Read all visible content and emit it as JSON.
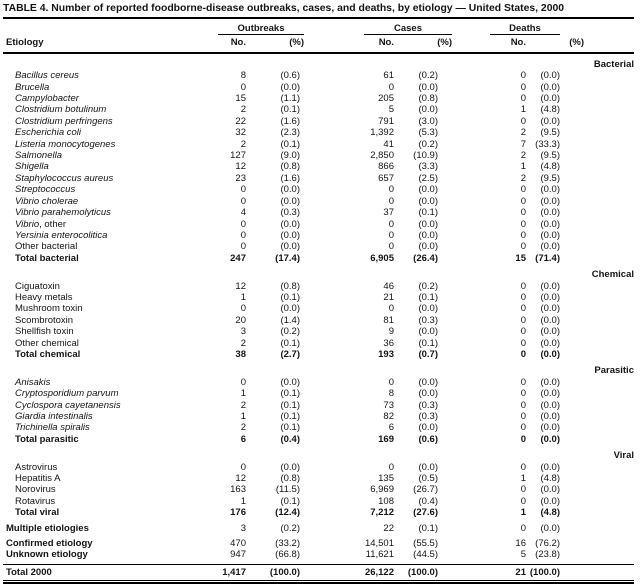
{
  "title": "TABLE 4. Number of reported foodborne-disease outbreaks, cases, and deaths, by etiology — United States, 2000",
  "colors": {
    "text": "#141414",
    "rule": "#000000",
    "background": "#ffffff"
  },
  "columns": {
    "etiology": "Etiology",
    "groups": [
      {
        "label": "Outbreaks",
        "no": "No.",
        "pct": "(%)"
      },
      {
        "label": "Cases",
        "no": "No.",
        "pct": "(%)"
      },
      {
        "label": "Deaths",
        "no": "No.",
        "pct": "(%)"
      }
    ]
  },
  "sections": [
    {
      "header": "Bacterial",
      "rows": [
        {
          "label_i": "Bacillus cereus",
          "indent": true,
          "cells": [
            "8",
            "(0.6)",
            "61",
            "(0.2)",
            "0",
            "(0.0)"
          ]
        },
        {
          "label_i": "Brucella",
          "indent": true,
          "cells": [
            "0",
            "(0.0)",
            "0",
            "(0.0)",
            "0",
            "(0.0)"
          ]
        },
        {
          "label_i": "Campylobacter",
          "indent": true,
          "cells": [
            "15",
            "(1.1)",
            "205",
            "(0.8)",
            "0",
            "(0.0)"
          ]
        },
        {
          "label_i": "Clostridium botulinum",
          "indent": true,
          "cells": [
            "2",
            "(0.1)",
            "5",
            "(0.0)",
            "1",
            "(4.8)"
          ]
        },
        {
          "label_i": "Clostridium perfringens",
          "indent": true,
          "cells": [
            "22",
            "(1.6)",
            "791",
            "(3.0)",
            "0",
            "(0.0)"
          ]
        },
        {
          "label_i": "Escherichia coli",
          "indent": true,
          "cells": [
            "32",
            "(2.3)",
            "1,392",
            "(5.3)",
            "2",
            "(9.5)"
          ]
        },
        {
          "label_i": "Listeria monocytogenes",
          "indent": true,
          "cells": [
            "2",
            "(0.1)",
            "41",
            "(0.2)",
            "7",
            "(33.3)"
          ]
        },
        {
          "label_i": "Salmonella",
          "indent": true,
          "cells": [
            "127",
            "(9.0)",
            "2,850",
            "(10.9)",
            "2",
            "(9.5)"
          ]
        },
        {
          "label_i": "Shigella",
          "indent": true,
          "cells": [
            "12",
            "(0.8)",
            "866",
            "(3.3)",
            "1",
            "(4.8)"
          ]
        },
        {
          "label_i": "Staphylococcus aureus",
          "indent": true,
          "cells": [
            "23",
            "(1.6)",
            "657",
            "(2.5)",
            "2",
            "(9.5)"
          ]
        },
        {
          "label_i": "Streptococcus",
          "indent": true,
          "cells": [
            "0",
            "(0.0)",
            "0",
            "(0.0)",
            "0",
            "(0.0)"
          ]
        },
        {
          "label_i": "Vibrio cholerae",
          "indent": true,
          "cells": [
            "0",
            "(0.0)",
            "0",
            "(0.0)",
            "0",
            "(0.0)"
          ]
        },
        {
          "label_i": "Vibrio parahemolyticus",
          "indent": true,
          "cells": [
            "4",
            "(0.3)",
            "37",
            "(0.1)",
            "0",
            "(0.0)"
          ]
        },
        {
          "label_i": "Vibrio",
          "label_r": ", other",
          "indent": true,
          "cells": [
            "0",
            "(0.0)",
            "0",
            "(0.0)",
            "0",
            "(0.0)"
          ]
        },
        {
          "label_i": "Yersinia enterocolitica",
          "indent": true,
          "cells": [
            "0",
            "(0.0)",
            "0",
            "(0.0)",
            "0",
            "(0.0)"
          ]
        },
        {
          "label_r": "Other bacterial",
          "indent": true,
          "cells": [
            "0",
            "(0.0)",
            "0",
            "(0.0)",
            "0",
            "(0.0)"
          ]
        },
        {
          "label_r": "Total bacterial",
          "indent": true,
          "bold": true,
          "cells": [
            "247",
            "(17.4)",
            "6,905",
            "(26.4)",
            "15",
            "(71.4)"
          ]
        }
      ]
    },
    {
      "header": "Chemical",
      "rows": [
        {
          "label_r": "Ciguatoxin",
          "indent": true,
          "cells": [
            "12",
            "(0.8)",
            "46",
            "(0.2)",
            "0",
            "(0.0)"
          ]
        },
        {
          "label_r": "Heavy metals",
          "indent": true,
          "cells": [
            "1",
            "(0.1)",
            "21",
            "(0.1)",
            "0",
            "(0.0)"
          ]
        },
        {
          "label_r": "Mushroom toxin",
          "indent": true,
          "cells": [
            "0",
            "(0.0)",
            "0",
            "(0.0)",
            "0",
            "(0.0)"
          ]
        },
        {
          "label_r": "Scombrotoxin",
          "indent": true,
          "cells": [
            "20",
            "(1.4)",
            "81",
            "(0.3)",
            "0",
            "(0.0)"
          ]
        },
        {
          "label_r": "Shellfish toxin",
          "indent": true,
          "cells": [
            "3",
            "(0.2)",
            "9",
            "(0.0)",
            "0",
            "(0.0)"
          ]
        },
        {
          "label_r": "Other chemical",
          "indent": true,
          "cells": [
            "2",
            "(0.1)",
            "36",
            "(0.1)",
            "0",
            "(0.0)"
          ]
        },
        {
          "label_r": "Total chemical",
          "indent": true,
          "bold": true,
          "cells": [
            "38",
            "(2.7)",
            "193",
            "(0.7)",
            "0",
            "(0.0)"
          ]
        }
      ]
    },
    {
      "header": "Parasitic",
      "rows": [
        {
          "label_i": "Anisakis",
          "indent": true,
          "cells": [
            "0",
            "(0.0)",
            "0",
            "(0.0)",
            "0",
            "(0.0)"
          ]
        },
        {
          "label_i": "Cryptosporidium parvum",
          "indent": true,
          "cells": [
            "1",
            "(0.1)",
            "8",
            "(0.0)",
            "0",
            "(0.0)"
          ]
        },
        {
          "label_i": "Cyclospora cayetanensis",
          "indent": true,
          "cells": [
            "2",
            "(0.1)",
            "73",
            "(0.3)",
            "0",
            "(0.0)"
          ]
        },
        {
          "label_i": "Giardia intestinalis",
          "indent": true,
          "cells": [
            "1",
            "(0.1)",
            "82",
            "(0.3)",
            "0",
            "(0.0)"
          ]
        },
        {
          "label_i": "Trichinella spiralis",
          "indent": true,
          "cells": [
            "2",
            "(0.1)",
            "6",
            "(0.0)",
            "0",
            "(0.0)"
          ]
        },
        {
          "label_r": "Total parasitic",
          "indent": true,
          "bold": true,
          "cells": [
            "6",
            "(0.4)",
            "169",
            "(0.6)",
            "0",
            "(0.0)"
          ]
        }
      ]
    },
    {
      "header": "Viral",
      "rows": [
        {
          "label_r": "Astrovirus",
          "indent": true,
          "cells": [
            "0",
            "(0.0)",
            "0",
            "(0.0)",
            "0",
            "(0.0)"
          ]
        },
        {
          "label_r": "Hepatitis A",
          "indent": true,
          "cells": [
            "12",
            "(0.8)",
            "135",
            "(0.5)",
            "1",
            "(4.8)"
          ]
        },
        {
          "label_r": "Norovirus",
          "indent": true,
          "cells": [
            "163",
            "(11.5)",
            "6,969",
            "(26.7)",
            "0",
            "(0.0)"
          ]
        },
        {
          "label_r": "Rotavirus",
          "indent": true,
          "cells": [
            "1",
            "(0.1)",
            "108",
            "(0.4)",
            "0",
            "(0.0)"
          ]
        },
        {
          "label_r": "Total viral",
          "indent": true,
          "bold": true,
          "cells": [
            "176",
            "(12.4)",
            "7,212",
            "(27.6)",
            "1",
            "(4.8)"
          ]
        }
      ]
    },
    {
      "header": null,
      "rows": [
        {
          "label_r": "Multiple etiologies",
          "label_bold": true,
          "cells": [
            "3",
            "(0.2)",
            "22",
            "(0.1)",
            "0",
            "(0.0)"
          ]
        }
      ]
    },
    {
      "header": null,
      "rows": [
        {
          "label_r": "Confirmed etiology",
          "label_bold": true,
          "cells": [
            "470",
            "(33.2)",
            "14,501",
            "(55.5)",
            "16",
            "(76.2)"
          ]
        },
        {
          "label_r": "Unknown etiology",
          "label_bold": true,
          "cells": [
            "947",
            "(66.8)",
            "11,621",
            "(44.5)",
            "5",
            "(23.8)"
          ]
        }
      ]
    }
  ],
  "total": {
    "label_r": "Total 2000",
    "bold": true,
    "cells": [
      "1,417",
      "(100.0)",
      "26,122",
      "(100.0)",
      "21",
      "(100.0)"
    ]
  }
}
